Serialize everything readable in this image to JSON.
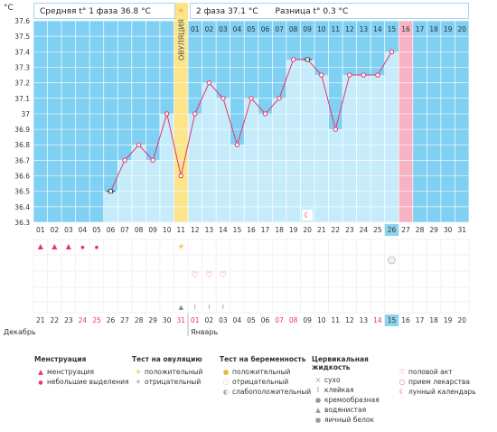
{
  "header": {
    "unit": "°C",
    "phase1": "Средняя t° 1 фаза 36.8 °C",
    "phase2": "2 фаза 37.1 °C",
    "diff": "Разница t° 0.3 °C"
  },
  "ovulation_label": "ОВУЛЯЦИЯ",
  "cycle_days": [
    "01",
    "02",
    "03",
    "04",
    "05",
    "06",
    "07",
    "08",
    "09",
    "10",
    "11",
    "12",
    "13",
    "14",
    "15",
    "16",
    "17",
    "18",
    "19",
    "20",
    "21",
    "22",
    "23",
    "24",
    "25",
    "26",
    "27",
    "28",
    "29",
    "30",
    "31"
  ],
  "top_day_labels": [
    "01",
    "02",
    "03",
    "04",
    "05",
    "06",
    "07",
    "08",
    "09",
    "10",
    "11",
    "12",
    "13",
    "14",
    "15",
    "16",
    "17",
    "18",
    "19",
    "20"
  ],
  "today_day": "26",
  "dates": [
    "21",
    "22",
    "23",
    "24",
    "25",
    "26",
    "27",
    "28",
    "29",
    "30",
    "31",
    "01",
    "02",
    "03",
    "04",
    "05",
    "06",
    "07",
    "08",
    "09",
    "10",
    "11",
    "12",
    "13",
    "14",
    "15",
    "16",
    "17",
    "18",
    "19",
    "20"
  ],
  "months": {
    "dec": "Декабрь",
    "jan": "Январь"
  },
  "red_dates_idx": [
    3,
    4,
    10,
    11,
    17,
    18,
    24
  ],
  "today_date_idx": 25,
  "chart_data": {
    "type": "line",
    "title": "",
    "xlabel": "",
    "ylabel": "°C",
    "ylim": [
      36.3,
      37.6
    ],
    "yticks": [
      "37.6",
      "37.5",
      "37.4",
      "37.3",
      "37.2",
      "37.1",
      "37",
      "36.9",
      "36.8",
      "36.7",
      "36.6",
      "36.5",
      "36.4",
      "36.3"
    ],
    "x": [
      6,
      7,
      8,
      9,
      10,
      11,
      12,
      13,
      14,
      15,
      16,
      17,
      18,
      19,
      20,
      21,
      22,
      23,
      24,
      25,
      26
    ],
    "values": [
      36.5,
      36.7,
      36.8,
      36.7,
      37.0,
      36.6,
      37.0,
      37.2,
      37.1,
      36.8,
      37.1,
      37.0,
      37.1,
      37.35,
      37.35,
      37.25,
      36.9,
      37.25,
      37.25,
      37.25,
      37.4
    ],
    "ovulation_day": 11,
    "pink_day": 27,
    "grid": true,
    "colors": {
      "plot_bg": "#7fd0f2",
      "bar": "#c6ecfb",
      "line": "#e8336e",
      "ovulation": "#fbe48a",
      "pink": "#f7b3c4",
      "today": "#8dd3ec"
    }
  },
  "symbols": {
    "menstruation_days": [
      1,
      2,
      3,
      4,
      5
    ],
    "ovulation_test_day": 11,
    "pregnancy_test_day": 26,
    "intercourse_days": [
      12,
      13,
      14
    ],
    "fluid_days": [
      11,
      12,
      13,
      14
    ]
  },
  "legend": {
    "menstruation": {
      "title": "Менструация",
      "items": [
        "менструация",
        "небольшие выделения"
      ]
    },
    "ovulation_test": {
      "title": "Тест на овуляцию",
      "items": [
        "положительный",
        "отрицательный"
      ]
    },
    "pregnancy_test": {
      "title": "Тест на беременность",
      "items": [
        "положительный",
        "отрицательный",
        "слабоположительный"
      ]
    },
    "cervical": {
      "title": "Цервикальная жидкость",
      "items": [
        "сухо",
        "клейкая",
        "кремообразная",
        "водянистая",
        "яичный белок"
      ]
    },
    "other": {
      "items": [
        "половой акт",
        "прием лекарства",
        "лунный календарь"
      ]
    }
  }
}
